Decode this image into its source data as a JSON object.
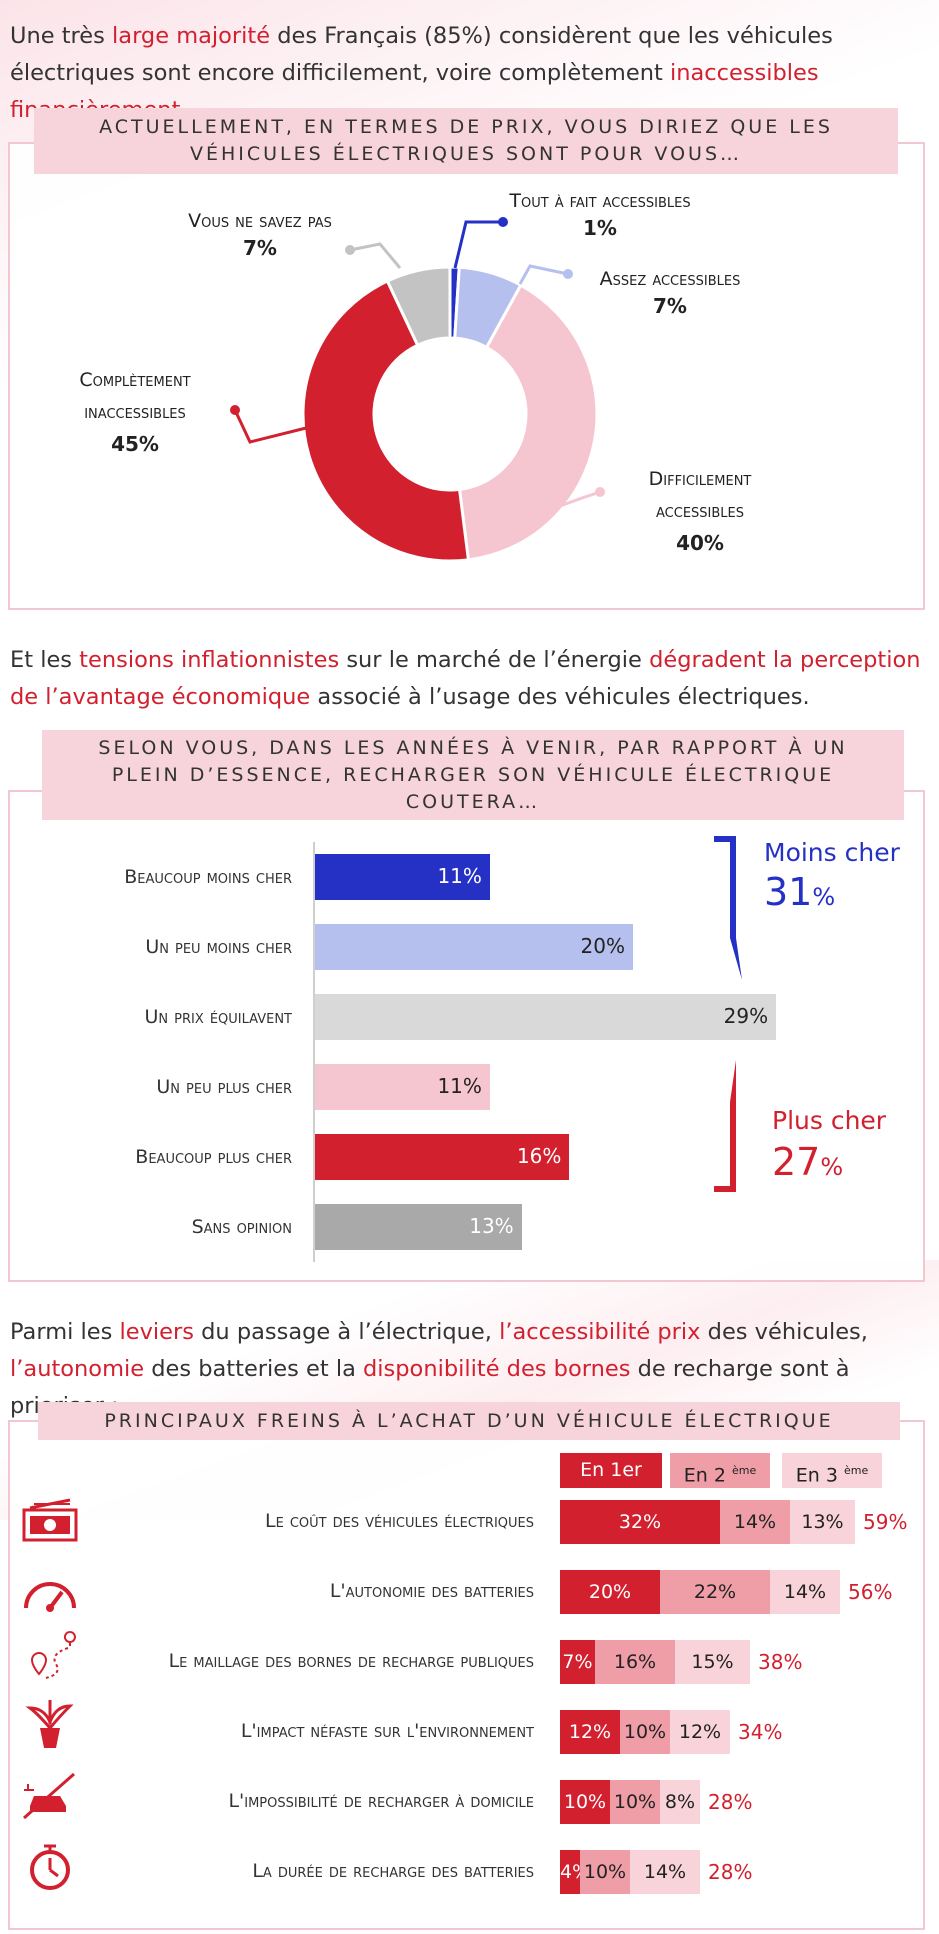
{
  "section1": {
    "intro": {
      "p1": "Une très ",
      "h1": "large majorité",
      "p2": " des Français (85%) considèrent que les véhicules électriques sont encore difficilement, voire complètement ",
      "h2": "inaccessibles financièrement",
      "p3": "."
    },
    "question_line1": "Actuellement, en termes de prix, vous diriez que les",
    "question_line2": "véhicules électriques sont pour vous…"
  },
  "donut": {
    "labels": [
      {
        "line1": "Tout à fait accessibles",
        "line2": "",
        "pct": "1%"
      },
      {
        "line1": "Assez accessibles",
        "line2": "",
        "pct": "7%"
      },
      {
        "line1": "Difficilement",
        "line2": "accessibles",
        "pct": "40%"
      },
      {
        "line1": "Complètement",
        "line2": "inaccessibles",
        "pct": "45%"
      },
      {
        "line1": "Vous ne savez pas",
        "line2": "",
        "pct": "7%"
      }
    ]
  },
  "section2": {
    "intro": {
      "p1": "Et les ",
      "h1": "tensions inflationnistes",
      "p2": " sur le marché de l’énergie ",
      "h2": "dégradent la perception de l’avantage économique",
      "p3": " associé à l’usage des véhicules électriques."
    },
    "question_line1": "Selon vous, dans les années à venir, par rapport à un",
    "question_line2": "plein d’essence, recharger son véhicule électrique",
    "question_line3": "coutera…",
    "group_less": {
      "label": "Moins cher",
      "value": "31",
      "unit": "%"
    },
    "group_more": {
      "label": "Plus cher",
      "value": "27",
      "unit": "%"
    }
  },
  "section3": {
    "intro": {
      "p1": "Parmi les ",
      "h1": "leviers",
      "p2": " du passage à l’électrique, ",
      "h2": "l’accessibilité prix",
      "p3": " des véhicules, ",
      "h3": "l’autonomie",
      "p4": " des batteries et la ",
      "h4": "disponibilité des bornes",
      "p5": " de recharge sont à prioriser :"
    },
    "question": "Principaux freins à l’achat d’un véhicule électrique",
    "headers": [
      {
        "base": "En 1",
        "sup": "",
        "tail": "er"
      },
      {
        "base": "En 2",
        "sup": "ème",
        "tail": ""
      },
      {
        "base": "En 3",
        "sup": "ème",
        "tail": ""
      }
    ]
  },
  "colors": {
    "red": "#d2202f",
    "blue": "#2531c4",
    "light_blue": "#b5c0ee",
    "light_pink": "#f5c5d0",
    "grey": "#c3c3c3",
    "light_grey": "#d9d9d9",
    "mid_grey": "#a9a9a9",
    "pink2": "#ef9ea8",
    "pink3": "#f8d3da"
  },
  "chart_data": [
    {
      "type": "pie",
      "title": "Actuellement, en termes de prix, vous diriez que les véhicules électriques sont pour vous…",
      "categories": [
        "Tout à fait accessibles",
        "Assez accessibles",
        "Difficilement accessibles",
        "Complètement inaccessibles",
        "Vous ne savez pas"
      ],
      "values": [
        1,
        7,
        40,
        45,
        7
      ],
      "colors": [
        "#2531c4",
        "#b5c0ee",
        "#f5c5d0",
        "#d2202f",
        "#c3c3c3"
      ]
    },
    {
      "type": "bar",
      "orientation": "horizontal",
      "title": "Selon vous, dans les années à venir, par rapport à un plein d’essence, recharger son véhicule électrique coutera…",
      "categories": [
        "Beaucoup moins cher",
        "Un peu moins cher",
        "Un prix équilavent",
        "Un peu plus cher",
        "Beaucoup plus cher",
        "Sans opinion"
      ],
      "values": [
        11,
        20,
        29,
        11,
        16,
        13
      ],
      "labels": [
        "11%",
        "20%",
        "29%",
        "11%",
        "16%",
        "13%"
      ],
      "colors": [
        "#2531c4",
        "#b5c0ee",
        "#d9d9d9",
        "#f5c5d0",
        "#d2202f",
        "#a9a9a9"
      ],
      "label_colors": [
        "#ffffff",
        "#222222",
        "#222222",
        "#222222",
        "#ffffff",
        "#ffffff"
      ]
    },
    {
      "type": "bar",
      "orientation": "horizontal",
      "stacked": true,
      "title": "Principaux freins à l’achat d’un véhicule électrique",
      "categories": [
        "Le coût des véhicules électriques",
        "L'autonomie des batteries",
        "Le maillage des bornes de recharge publiques",
        "L'impact néfaste sur l'environnement",
        "L'impossibilité de recharger à domicile",
        "La durée de recharge des batteries"
      ],
      "icons": [
        "money-icon",
        "gauge-icon",
        "route-pin-icon",
        "plant-icon",
        "no-car-plug-icon",
        "stopwatch-icon"
      ],
      "series": [
        {
          "name": "En 1er",
          "values": [
            32,
            20,
            7,
            12,
            10,
            4
          ],
          "labels": [
            "32%",
            "20%",
            "7%",
            "12%",
            "10%",
            "4%"
          ]
        },
        {
          "name": "En 2ème",
          "values": [
            14,
            22,
            16,
            10,
            10,
            10
          ],
          "labels": [
            "14%",
            "22%",
            "16%",
            "10%",
            "10%",
            "10%"
          ]
        },
        {
          "name": "En 3ème",
          "values": [
            13,
            14,
            15,
            12,
            8,
            14
          ],
          "labels": [
            "13%",
            "14%",
            "15%",
            "12%",
            "8%",
            "14%"
          ]
        }
      ],
      "totals": [
        "59%",
        "56%",
        "38%",
        "34%",
        "28%",
        "28%"
      ]
    }
  ]
}
